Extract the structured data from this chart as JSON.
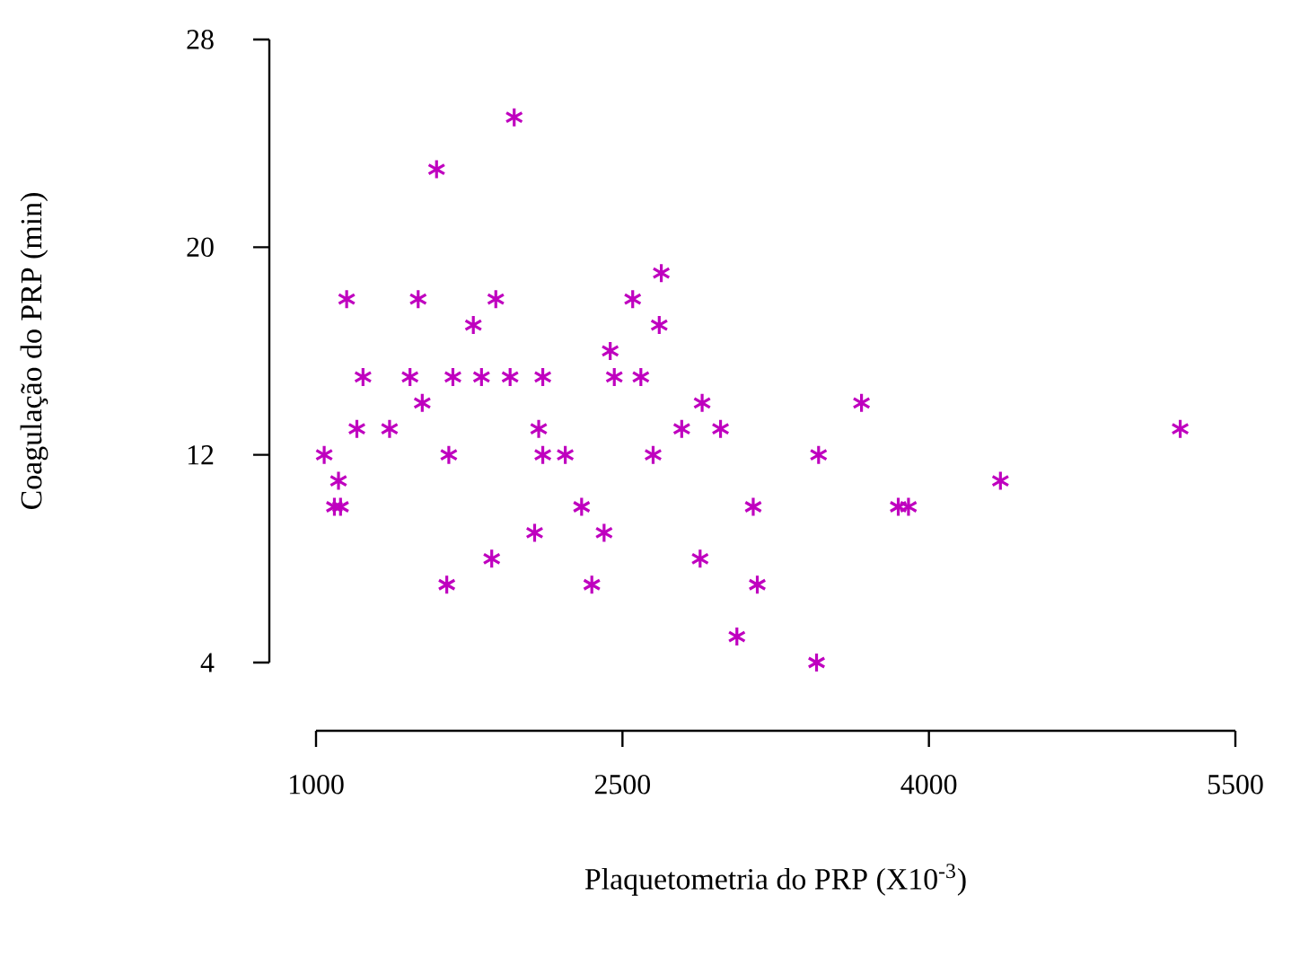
{
  "chart_data": {
    "type": "scatter",
    "xlabel": "Plaquetometria do PRP (X10$^{-3}$)",
    "ylabel": "Coagulação do PRP (min)",
    "xlim": [
      1000,
      5500
    ],
    "xticks": [
      1000,
      2500,
      4000,
      5500
    ],
    "ylim": [
      4,
      28
    ],
    "yticks": [
      4,
      12,
      20,
      28
    ],
    "marker": "cross",
    "grid": false,
    "series": [
      {
        "color": "#bf00bf",
        "x": [
          1970,
          1590,
          2690,
          1150,
          1500,
          1880,
          2550,
          1770,
          2680,
          2440,
          1230,
          1460,
          1670,
          1810,
          1950,
          2110,
          2460,
          2590,
          1520,
          2890,
          1200,
          1360,
          2090,
          2790,
          2980,
          1040,
          1650,
          2110,
          2220,
          2650,
          1110,
          1090,
          1120,
          2300,
          3140,
          2070,
          2410,
          1860,
          2880,
          1640,
          2350,
          3060,
          3670,
          5230,
          3460,
          3850,
          3900,
          4350,
          3160,
          3450
        ],
        "values": [
          25,
          23,
          19,
          18,
          18,
          18,
          18,
          17,
          17,
          16,
          15,
          15,
          15,
          15,
          15,
          15,
          15,
          15,
          14,
          14,
          13,
          13,
          13,
          13,
          13,
          12,
          12,
          12,
          12,
          12,
          11,
          10,
          10,
          10,
          10,
          9,
          9,
          8,
          8,
          7,
          7,
          5,
          14,
          13,
          12,
          10,
          10,
          11,
          7,
          4
        ]
      }
    ]
  }
}
